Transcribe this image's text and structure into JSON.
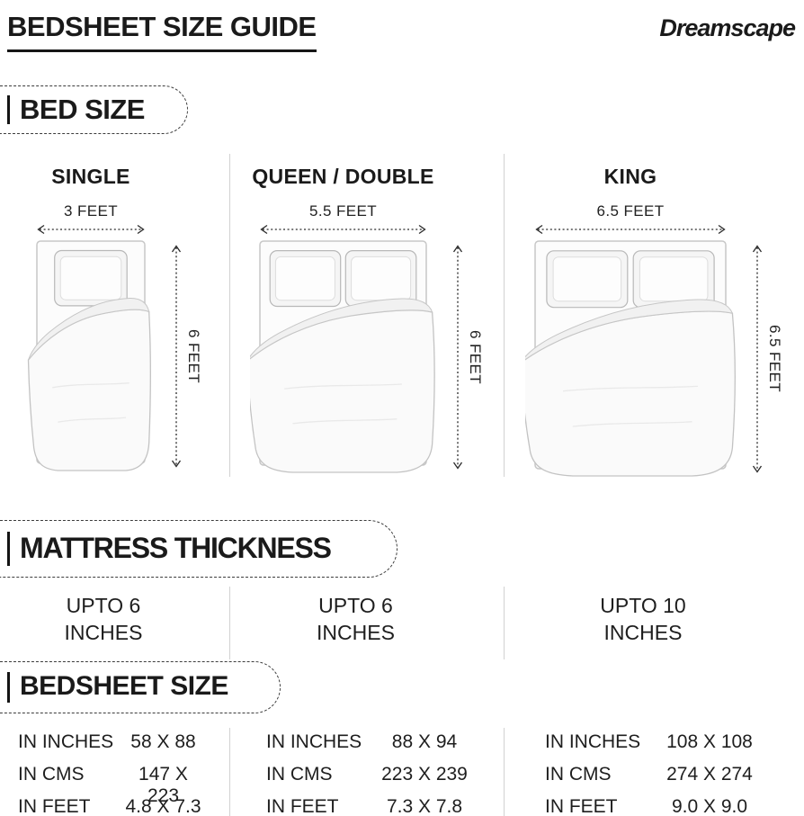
{
  "header": {
    "title": "BEDSHEET SIZE GUIDE",
    "brand": "Dreamscape"
  },
  "section_labels": {
    "bed_size": "BED SIZE",
    "mattress_thickness": "MATTRESS THICKNESS",
    "bedsheet_size": "BEDSHEET SIZE"
  },
  "measurement_labels": {
    "inches": "IN INCHES",
    "cms": "IN CMS",
    "feet": "IN FEET"
  },
  "beds": [
    {
      "name": "SINGLE",
      "width_label": "3 FEET",
      "height_label": "6 FEET",
      "thickness_line1": "UPTO 6",
      "thickness_line2": "INCHES",
      "bedsheet": {
        "inches": "58 X 88",
        "cms": "147 X 223",
        "feet": "4.8 X 7.3"
      }
    },
    {
      "name": "QUEEN / DOUBLE",
      "width_label": "5.5 FEET",
      "height_label": "6 FEET",
      "thickness_line1": "UPTO 6",
      "thickness_line2": "INCHES",
      "bedsheet": {
        "inches": "88 X 94",
        "cms": "223 X 239",
        "feet": "7.3 X 7.8"
      }
    },
    {
      "name": "KING",
      "width_label": "6.5 FEET",
      "height_label": "6.5 FEET",
      "thickness_line1": "UPTO 10",
      "thickness_line2": "INCHES",
      "bedsheet": {
        "inches": "108 X 108",
        "cms": "274 X 274",
        "feet": "9.0 X 9.0"
      }
    }
  ]
}
